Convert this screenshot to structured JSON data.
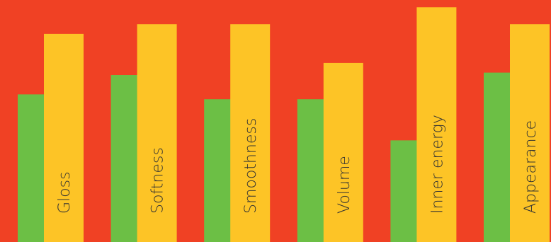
{
  "chart_data": {
    "type": "bar",
    "categories": [
      "Gloss",
      "Softness",
      "Smoothness",
      "Volume",
      "Inner energy",
      "Appearance"
    ],
    "series": [
      {
        "values": [
          61,
          69,
          59,
          59,
          42,
          70
        ]
      },
      {
        "values": [
          86,
          90,
          90,
          74,
          97,
          90
        ]
      }
    ],
    "ylim": [
      0,
      100
    ],
    "grid": false,
    "legend": "none",
    "colors": {
      "background": "#f04124",
      "series_1": "#6cbf45",
      "series_2": "#fdc426",
      "label_text": "#333333"
    }
  }
}
